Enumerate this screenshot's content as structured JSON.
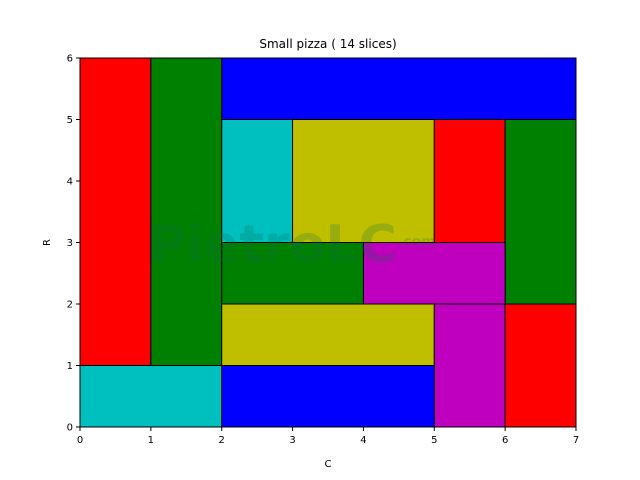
{
  "chart_data": {
    "type": "heatmap",
    "title": "Small pizza ( 14 slices)",
    "xlabel": "C",
    "ylabel": "R",
    "xlim": [
      0,
      7
    ],
    "ylim": [
      0,
      6
    ],
    "xticks": [
      "0",
      "1",
      "2",
      "3",
      "4",
      "5",
      "6",
      "7"
    ],
    "yticks": [
      "0",
      "1",
      "2",
      "3",
      "4",
      "5",
      "6"
    ],
    "grid": false,
    "colors": {
      "red": "#ff0000",
      "green": "#008000",
      "blue": "#0000ff",
      "cyan": "#00bfbf",
      "yellow": "#bfbf00",
      "magenta": "#bf00bf"
    },
    "slices": [
      {
        "x0": 0,
        "x1": 1,
        "y0": 1,
        "y1": 6,
        "color": "red"
      },
      {
        "x0": 1,
        "x1": 2,
        "y0": 1,
        "y1": 6,
        "color": "green"
      },
      {
        "x0": 2,
        "x1": 7,
        "y0": 5,
        "y1": 6,
        "color": "blue"
      },
      {
        "x0": 2,
        "x1": 3,
        "y0": 3,
        "y1": 5,
        "color": "cyan"
      },
      {
        "x0": 3,
        "x1": 5,
        "y0": 3,
        "y1": 5,
        "color": "yellow"
      },
      {
        "x0": 5,
        "x1": 6,
        "y0": 3,
        "y1": 5,
        "color": "red"
      },
      {
        "x0": 6,
        "x1": 7,
        "y0": 2,
        "y1": 5,
        "color": "green"
      },
      {
        "x0": 2,
        "x1": 4,
        "y0": 2,
        "y1": 3,
        "color": "green"
      },
      {
        "x0": 4,
        "x1": 6,
        "y0": 2,
        "y1": 3,
        "color": "magenta"
      },
      {
        "x0": 2,
        "x1": 5,
        "y0": 1,
        "y1": 2,
        "color": "yellow"
      },
      {
        "x0": 5,
        "x1": 6,
        "y0": 0,
        "y1": 2,
        "color": "magenta"
      },
      {
        "x0": 6,
        "x1": 7,
        "y0": 0,
        "y1": 2,
        "color": "red"
      },
      {
        "x0": 0,
        "x1": 2,
        "y0": 0,
        "y1": 1,
        "color": "cyan"
      },
      {
        "x0": 2,
        "x1": 5,
        "y0": 0,
        "y1": 1,
        "color": "blue"
      }
    ]
  },
  "watermark": {
    "text": "PietroLC",
    "suffix": ".com"
  }
}
